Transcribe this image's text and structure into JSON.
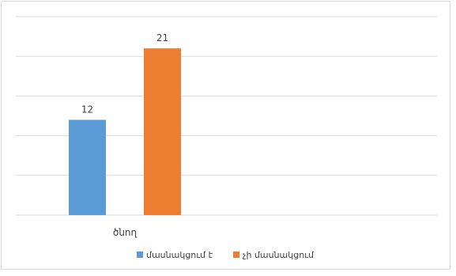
{
  "chart_data": {
    "type": "bar",
    "categories": [
      "ծնող"
    ],
    "series": [
      {
        "name": "մասնակցում է",
        "values": [
          12
        ],
        "color": "#5b9bd5"
      },
      {
        "name": "չի մասնակցում",
        "values": [
          21
        ],
        "color": "#ed7d31"
      }
    ],
    "ylim": [
      0,
      25
    ],
    "grid": true,
    "legend_position": "bottom",
    "data_labels": true
  }
}
